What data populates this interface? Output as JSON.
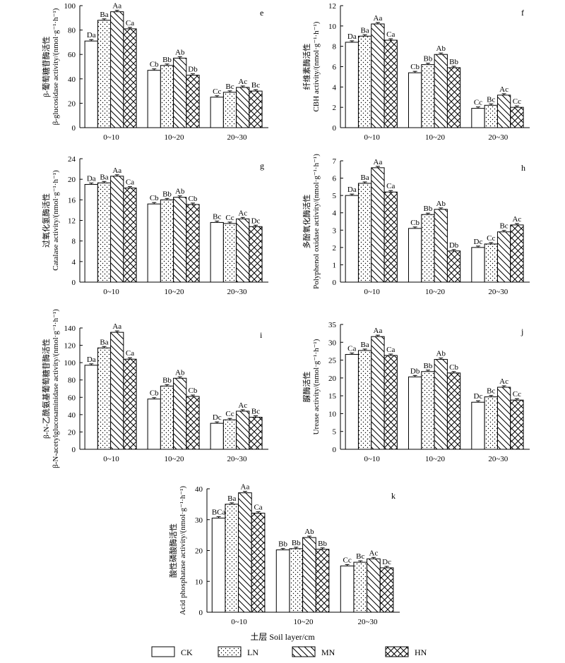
{
  "x_title": "土层 Soil layer/cm",
  "legend": [
    {
      "label": "CK",
      "pattern": "none"
    },
    {
      "label": "LN",
      "pattern": "dots"
    },
    {
      "label": "MN",
      "pattern": "diag"
    },
    {
      "label": "HN",
      "pattern": "cross"
    }
  ],
  "chart_data": [
    {
      "type": "bar",
      "panel": "e",
      "ylabel_cn": "β-葡萄糖苷酶活性",
      "ylabel_en": "β-glucosidase activity/(nmol·g⁻¹·h⁻¹)",
      "ylim": [
        0,
        100
      ],
      "yticks": [
        "0",
        "20",
        "40",
        "60",
        "80",
        "100"
      ],
      "categories": [
        "0~10",
        "10~20",
        "20~30"
      ],
      "series": [
        {
          "name": "CK",
          "values": [
            71,
            47,
            25
          ],
          "labels": [
            "Da",
            "Cb",
            "Cc"
          ]
        },
        {
          "name": "LN",
          "values": [
            88,
            51,
            29
          ],
          "labels": [
            "Ba",
            "Bb",
            "Bc"
          ]
        },
        {
          "name": "MN",
          "values": [
            95,
            57,
            33
          ],
          "labels": [
            "Aa",
            "Ab",
            "Ac"
          ]
        },
        {
          "name": "HN",
          "values": [
            81,
            43,
            30
          ],
          "labels": [
            "Ca",
            "Db",
            "Bc"
          ]
        }
      ]
    },
    {
      "type": "bar",
      "panel": "f",
      "ylabel_cn": "纤维素酶活性",
      "ylabel_en": "CBH activity/(nmol·g⁻¹·h⁻¹)",
      "ylim": [
        0,
        12
      ],
      "yticks": [
        "0",
        "2",
        "4",
        "6",
        "8",
        "10",
        "12"
      ],
      "categories": [
        "0~10",
        "10~20",
        "20~30"
      ],
      "series": [
        {
          "name": "CK",
          "values": [
            8.4,
            5.4,
            1.9
          ],
          "labels": [
            "Da",
            "Cb",
            "Cc"
          ]
        },
        {
          "name": "LN",
          "values": [
            9.0,
            6.2,
            2.2
          ],
          "labels": [
            "Ba",
            "Bb",
            "Bc"
          ]
        },
        {
          "name": "MN",
          "values": [
            10.2,
            7.2,
            3.2
          ],
          "labels": [
            "Aa",
            "Ab",
            "Ac"
          ]
        },
        {
          "name": "HN",
          "values": [
            8.6,
            5.9,
            2.0
          ],
          "labels": [
            "Ca",
            "Bb",
            "Cc"
          ]
        }
      ]
    },
    {
      "type": "bar",
      "panel": "g",
      "ylabel_cn": "过氧化氢酶活性",
      "ylabel_en": "Catalase activity/(nmol·g⁻¹·h⁻¹)",
      "ylim": [
        0,
        24
      ],
      "yticks": [
        "0",
        "4",
        "8",
        "12",
        "16",
        "20",
        "24"
      ],
      "categories": [
        "0~10",
        "10~20",
        "20~30"
      ],
      "series": [
        {
          "name": "CK",
          "values": [
            19.0,
            15.2,
            11.6
          ],
          "labels": [
            "Da",
            "Cb",
            "Bc"
          ]
        },
        {
          "name": "LN",
          "values": [
            19.3,
            16.0,
            11.4
          ],
          "labels": [
            "Ba",
            "Bb",
            "Cc"
          ]
        },
        {
          "name": "MN",
          "values": [
            20.6,
            16.5,
            12.3
          ],
          "labels": [
            "Aa",
            "Ab",
            "Ac"
          ]
        },
        {
          "name": "HN",
          "values": [
            18.3,
            15.1,
            10.8
          ],
          "labels": [
            "Ca",
            "Cb",
            "Dc"
          ]
        }
      ]
    },
    {
      "type": "bar",
      "panel": "h",
      "ylabel_cn": "多酚氧化酶活性",
      "ylabel_en": "Polyphenol oxidase activity/(nmol·g⁻¹·h⁻¹)",
      "ylim": [
        0,
        7
      ],
      "yticks": [
        "0",
        "1",
        "2",
        "3",
        "4",
        "5",
        "6",
        "7"
      ],
      "categories": [
        "0~10",
        "10~20",
        "20~30"
      ],
      "series": [
        {
          "name": "CK",
          "values": [
            5.0,
            3.1,
            2.0
          ],
          "labels": [
            "Da",
            "Cb",
            "Dc"
          ]
        },
        {
          "name": "LN",
          "values": [
            5.7,
            3.9,
            2.2
          ],
          "labels": [
            "Ba",
            "Bb",
            "Cc"
          ]
        },
        {
          "name": "MN",
          "values": [
            6.6,
            4.2,
            2.9
          ],
          "labels": [
            "Aa",
            "Ab",
            "Bc"
          ]
        },
        {
          "name": "HN",
          "values": [
            5.2,
            1.8,
            3.3
          ],
          "labels": [
            "Ca",
            "Db",
            "Ac"
          ]
        }
      ]
    },
    {
      "type": "bar",
      "panel": "i",
      "ylabel_cn": "β-N-乙酰氨基葡萄糖苷酶活性",
      "ylabel_en": "β-N-acetylglucosaminidase activity/(nmol·g⁻¹·h⁻¹)",
      "ylim": [
        0,
        140
      ],
      "yticks": [
        "0",
        "20",
        "40",
        "60",
        "80",
        "100",
        "120",
        "140"
      ],
      "categories": [
        "0~10",
        "10~20",
        "20~30"
      ],
      "series": [
        {
          "name": "CK",
          "values": [
            97,
            58,
            30
          ],
          "labels": [
            "Da",
            "Cb",
            "Dc"
          ]
        },
        {
          "name": "LN",
          "values": [
            117,
            73,
            34
          ],
          "labels": [
            "Ba",
            "Bb",
            "Cc"
          ]
        },
        {
          "name": "MN",
          "values": [
            135,
            82,
            44
          ],
          "labels": [
            "Aa",
            "Ab",
            "Ac"
          ]
        },
        {
          "name": "HN",
          "values": [
            104,
            61,
            37
          ],
          "labels": [
            "Ca",
            "Cb",
            "Bc"
          ]
        }
      ]
    },
    {
      "type": "bar",
      "panel": "j",
      "ylabel_cn": "脲酶活性",
      "ylabel_en": "Urease activity/(nmol·g⁻¹·h⁻¹)",
      "ylim": [
        0,
        35
      ],
      "yticks": [
        "0",
        "5",
        "10",
        "15",
        "20",
        "25",
        "30",
        "35"
      ],
      "categories": [
        "0~10",
        "10~20",
        "20~30"
      ],
      "series": [
        {
          "name": "CK",
          "values": [
            26.6,
            20.3,
            13.2
          ],
          "labels": [
            "Ca",
            "Db",
            "Dc"
          ]
        },
        {
          "name": "LN",
          "values": [
            27.7,
            21.8,
            14.7
          ],
          "labels": [
            "Ba",
            "Bb",
            "Bc"
          ]
        },
        {
          "name": "MN",
          "values": [
            31.6,
            25.2,
            17.4
          ],
          "labels": [
            "Aa",
            "Ab",
            "Ac"
          ]
        },
        {
          "name": "HN",
          "values": [
            26.3,
            21.4,
            13.8
          ],
          "labels": [
            "Ca",
            "Cb",
            "Cc"
          ]
        }
      ]
    },
    {
      "type": "bar",
      "panel": "k",
      "ylabel_cn": "酸性磷酸酶活性",
      "ylabel_en": "Acid phosphatase activity/(nmol·g⁻¹·h⁻¹)",
      "ylim": [
        0,
        40
      ],
      "yticks": [
        "0",
        "10",
        "20",
        "30",
        "40"
      ],
      "categories": [
        "0~10",
        "10~20",
        "20~30"
      ],
      "series": [
        {
          "name": "CK",
          "values": [
            30.5,
            20.2,
            15.0
          ],
          "labels": [
            "BCa",
            "Bb",
            "Cc"
          ]
        },
        {
          "name": "LN",
          "values": [
            35.0,
            20.6,
            16.2
          ],
          "labels": [
            "Ba",
            "Bb",
            "Bc"
          ]
        },
        {
          "name": "MN",
          "values": [
            38.7,
            24.2,
            17.3
          ],
          "labels": [
            "Aa",
            "Ab",
            "Ac"
          ]
        },
        {
          "name": "HN",
          "values": [
            32.1,
            20.4,
            14.4
          ],
          "labels": [
            "Ca",
            "Bb",
            "Dc"
          ]
        }
      ]
    }
  ]
}
